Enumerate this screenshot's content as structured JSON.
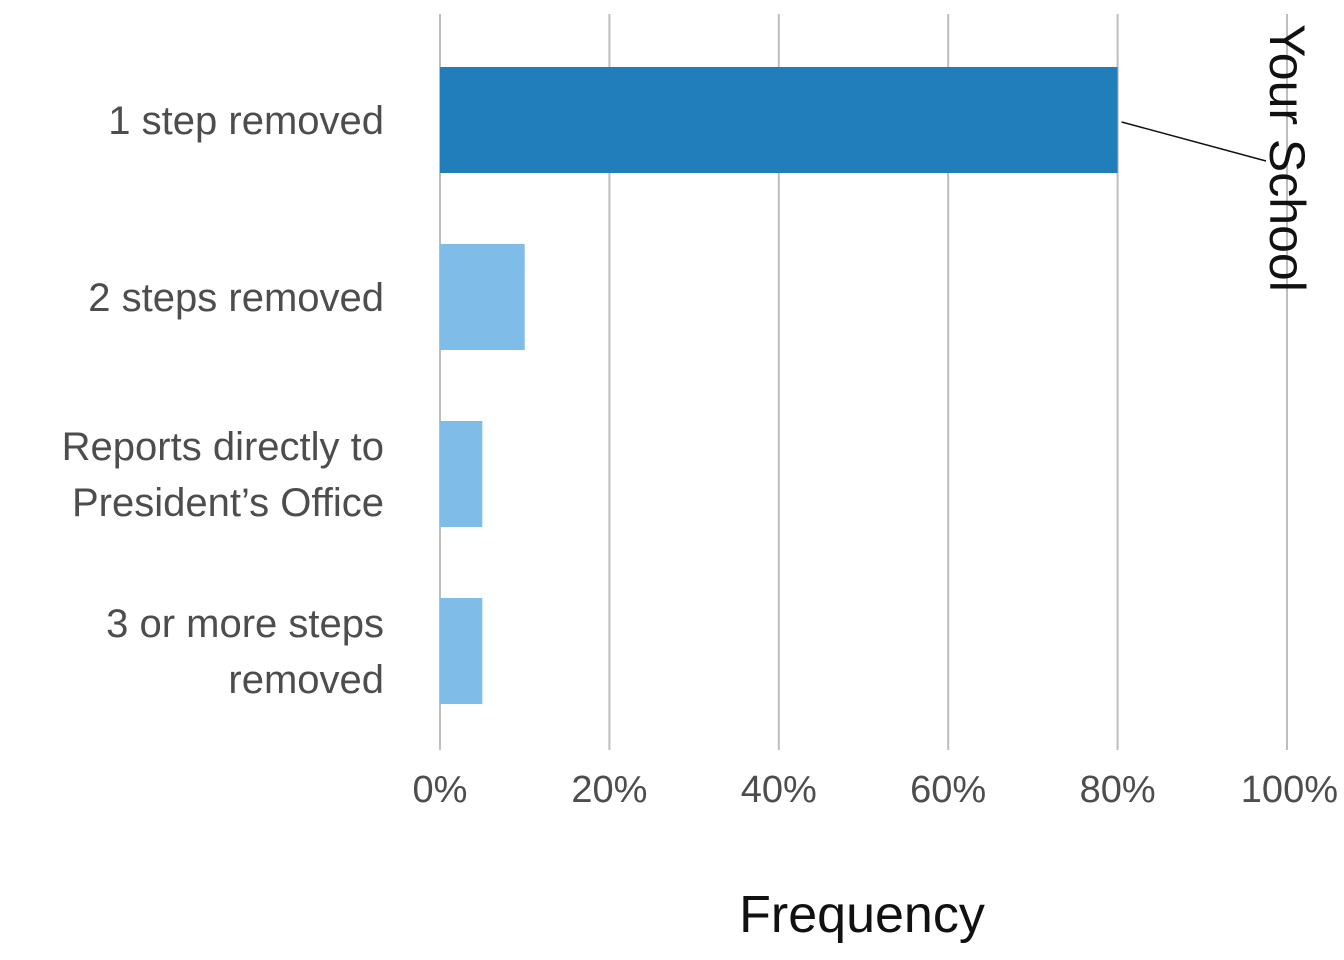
{
  "chart_data": {
    "type": "bar",
    "orientation": "horizontal",
    "categories": [
      [
        "1 step removed"
      ],
      [
        "2 steps removed"
      ],
      [
        "Reports directly to",
        "President’s Office"
      ],
      [
        "3 or more steps",
        "removed"
      ]
    ],
    "values": [
      80,
      10,
      5,
      5
    ],
    "highlight_index": 0,
    "highlight_label": "Your School",
    "xlabel": "Frequency",
    "ylabel": "",
    "xlim": [
      0,
      100
    ],
    "xticks": [
      0,
      20,
      40,
      60,
      80,
      100
    ],
    "xtick_labels": [
      "0%",
      "20%",
      "40%",
      "60%",
      "80%",
      "100%"
    ],
    "grid": "vertical",
    "colors": {
      "highlight": "#227dbb",
      "base": "#7fbce8",
      "grid": "#bdbdbd",
      "label": "#4d4d4d"
    }
  }
}
